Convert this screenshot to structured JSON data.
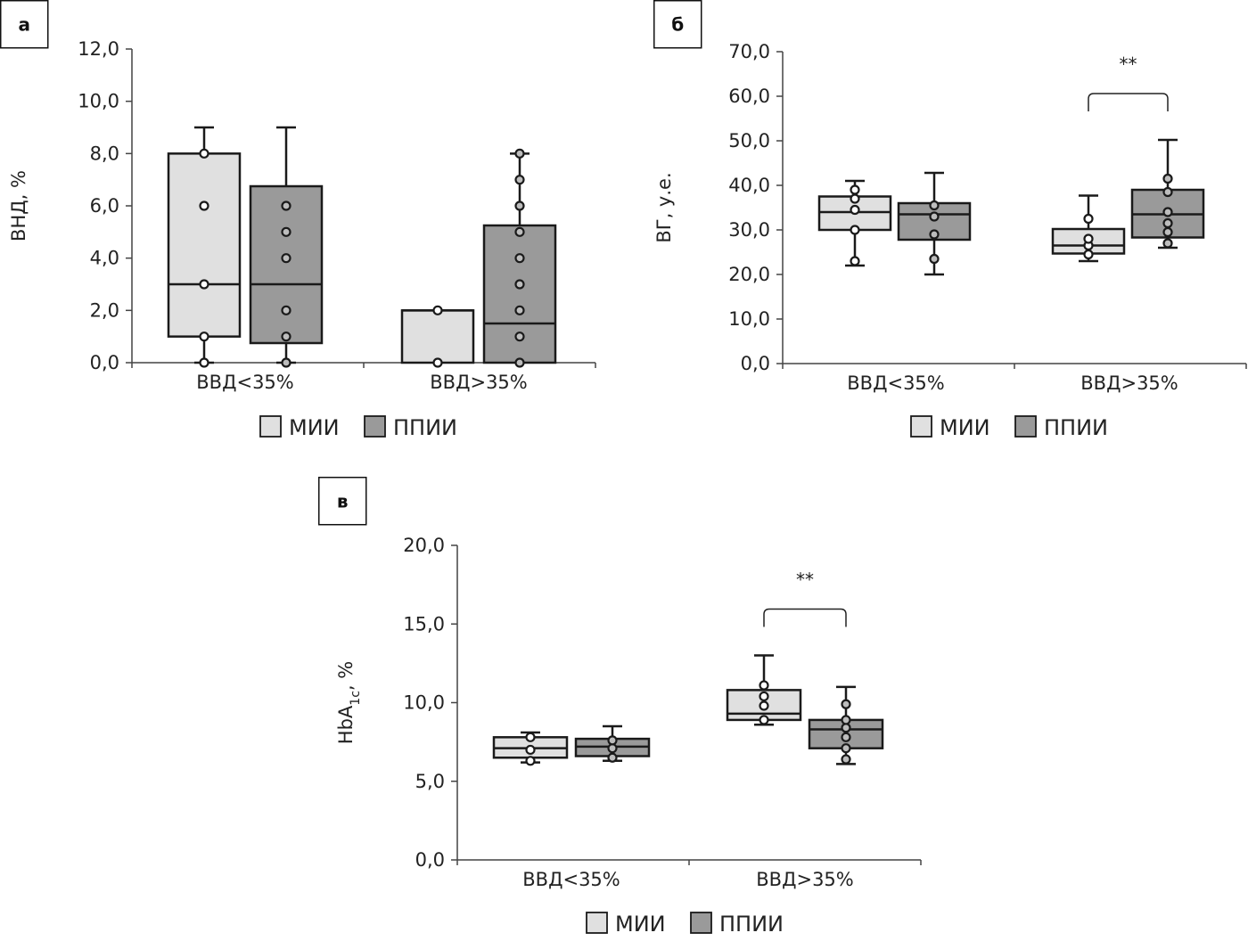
{
  "colors": {
    "mii": "#e0e0e0",
    "ppii": "#9a9a9a",
    "stroke": "#1a1a1a"
  },
  "legend": [
    "МИИ",
    "ППИИ"
  ],
  "chart_data": [
    {
      "type": "box",
      "panel_label": "а",
      "ylabel": "ВНД, %",
      "ylim": [
        0,
        12
      ],
      "yticks": [
        "0,0",
        "2,0",
        "4,0",
        "6,0",
        "8,0",
        "10,0",
        "12,0"
      ],
      "ytick_values": [
        0,
        2,
        4,
        6,
        8,
        10,
        12
      ],
      "categories": [
        "ВВД<35%",
        "ВВД>35%"
      ],
      "series": [
        {
          "name": "МИИ",
          "boxes": [
            {
              "min": 0,
              "q1": 1,
              "median": 3,
              "q3": 8,
              "max": 9,
              "points": [
                0,
                1,
                3,
                6,
                8
              ]
            },
            {
              "min": 0,
              "q1": 0,
              "median": 2,
              "q3": 2,
              "max": 2,
              "points": [
                0,
                2
              ]
            }
          ]
        },
        {
          "name": "ППИИ",
          "boxes": [
            {
              "min": 0,
              "q1": 0.75,
              "median": 3,
              "q3": 6.75,
              "max": 9,
              "points": [
                0,
                1,
                2,
                4,
                5,
                6
              ]
            },
            {
              "min": 0,
              "q1": 0,
              "median": 1.5,
              "q3": 5.25,
              "max": 8,
              "points": [
                0,
                1,
                2,
                3,
                4,
                5,
                6,
                7,
                8
              ]
            }
          ]
        }
      ],
      "significance": []
    },
    {
      "type": "box",
      "panel_label": "б",
      "ylabel": "ВГ, у.е.",
      "ylim": [
        0,
        70
      ],
      "yticks": [
        "0,0",
        "10,0",
        "20,0",
        "30,0",
        "40,0",
        "50,0",
        "60,0",
        "70,0"
      ],
      "ytick_values": [
        0,
        10,
        20,
        30,
        40,
        50,
        60,
        70
      ],
      "categories": [
        "ВВД<35%",
        "ВВД>35%"
      ],
      "series": [
        {
          "name": "МИИ",
          "boxes": [
            {
              "min": 22,
              "q1": 30,
              "median": 34,
              "q3": 37.5,
              "max": 41,
              "points": [
                23,
                30,
                34.5,
                37,
                39
              ]
            },
            {
              "min": 23,
              "q1": 24.7,
              "median": 26.5,
              "q3": 30.2,
              "max": 37.7,
              "points": [
                24.5,
                26.5,
                28,
                32.5
              ]
            }
          ]
        },
        {
          "name": "ППИИ",
          "boxes": [
            {
              "min": 20,
              "q1": 27.8,
              "median": 33.5,
              "q3": 36,
              "max": 42.8,
              "points": [
                23.5,
                29,
                33,
                35.5
              ]
            },
            {
              "min": 26,
              "q1": 28.3,
              "median": 33.5,
              "q3": 39,
              "max": 50.2,
              "points": [
                27,
                29.5,
                31.5,
                34,
                38.5,
                41.5
              ]
            }
          ]
        }
      ],
      "significance": [
        {
          "category": 1,
          "label": "**"
        }
      ]
    },
    {
      "type": "box",
      "panel_label": "в",
      "ylabel": "HbA",
      "ylabel_sub": "1c",
      "ylabel_suffix": ", %",
      "ylim": [
        0,
        20
      ],
      "yticks": [
        "0,0",
        "5,0",
        "10,0",
        "15,0",
        "20,0"
      ],
      "ytick_values": [
        0,
        5,
        10,
        15,
        20
      ],
      "categories": [
        "ВВД<35%",
        "ВВД>35%"
      ],
      "series": [
        {
          "name": "МИИ",
          "boxes": [
            {
              "min": 6.2,
              "q1": 6.5,
              "median": 7.1,
              "q3": 7.8,
              "max": 8.1,
              "points": [
                6.3,
                7.0,
                7.8
              ]
            },
            {
              "min": 8.6,
              "q1": 8.9,
              "median": 9.3,
              "q3": 10.8,
              "max": 13,
              "points": [
                8.9,
                9.8,
                10.4,
                11.1
              ]
            }
          ]
        },
        {
          "name": "ППИИ",
          "boxes": [
            {
              "min": 6.3,
              "q1": 6.6,
              "median": 7.2,
              "q3": 7.7,
              "max": 8.5,
              "points": [
                6.5,
                7.1,
                7.6
              ]
            },
            {
              "min": 6.1,
              "q1": 7.1,
              "median": 8.3,
              "q3": 8.9,
              "max": 11,
              "points": [
                6.4,
                7.1,
                7.8,
                8.4,
                8.9,
                9.9
              ]
            }
          ]
        }
      ],
      "significance": [
        {
          "category": 1,
          "label": "**"
        }
      ]
    }
  ]
}
